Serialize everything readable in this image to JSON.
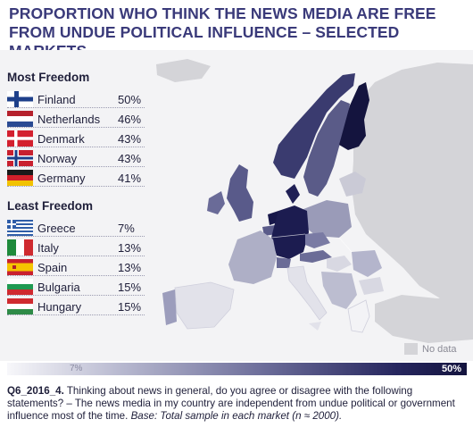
{
  "title": {
    "line1": "PROPORTION WHO THINK THE NEWS MEDIA ARE FREE",
    "line2": "FROM UNDUE POLITICAL INFLUENCE – SELECTED MARKETS"
  },
  "legend": {
    "most": {
      "heading": "Most Freedom",
      "items": [
        {
          "country": "Finland",
          "value": "50%",
          "flag": "finland-flag-icon"
        },
        {
          "country": "Netherlands",
          "value": "46%",
          "flag": "netherlands-flag-icon"
        },
        {
          "country": "Denmark",
          "value": "43%",
          "flag": "denmark-flag-icon"
        },
        {
          "country": "Norway",
          "value": "43%",
          "flag": "norway-flag-icon"
        },
        {
          "country": "Germany",
          "value": "41%",
          "flag": "germany-flag-icon"
        }
      ]
    },
    "least": {
      "heading": "Least Freedom",
      "items": [
        {
          "country": "Greece",
          "value": "7%",
          "flag": "greece-flag-icon"
        },
        {
          "country": "Italy",
          "value": "13%",
          "flag": "italy-flag-icon"
        },
        {
          "country": "Spain",
          "value": "13%",
          "flag": "spain-flag-icon"
        },
        {
          "country": "Bulgaria",
          "value": "15%",
          "flag": "bulgaria-flag-icon"
        },
        {
          "country": "Hungary",
          "value": "15%",
          "flag": "hungary-flag-icon"
        }
      ]
    }
  },
  "nodata_label": "No data",
  "scale": {
    "min": "7%",
    "max": "50%"
  },
  "colors": {
    "title": "#3a3a7a",
    "dark": "#14143e",
    "light": "#f7f7fa",
    "nodata": "#d4d4d8"
  },
  "question": {
    "code": "Q6_2016_4.",
    "text": " Thinking about news in general, do you agree or disagree with the following statements? – The news media in my country are independent from undue political or government influence most of the time. ",
    "base": "Base: Total sample in each market (n ≈ 2000)."
  }
}
